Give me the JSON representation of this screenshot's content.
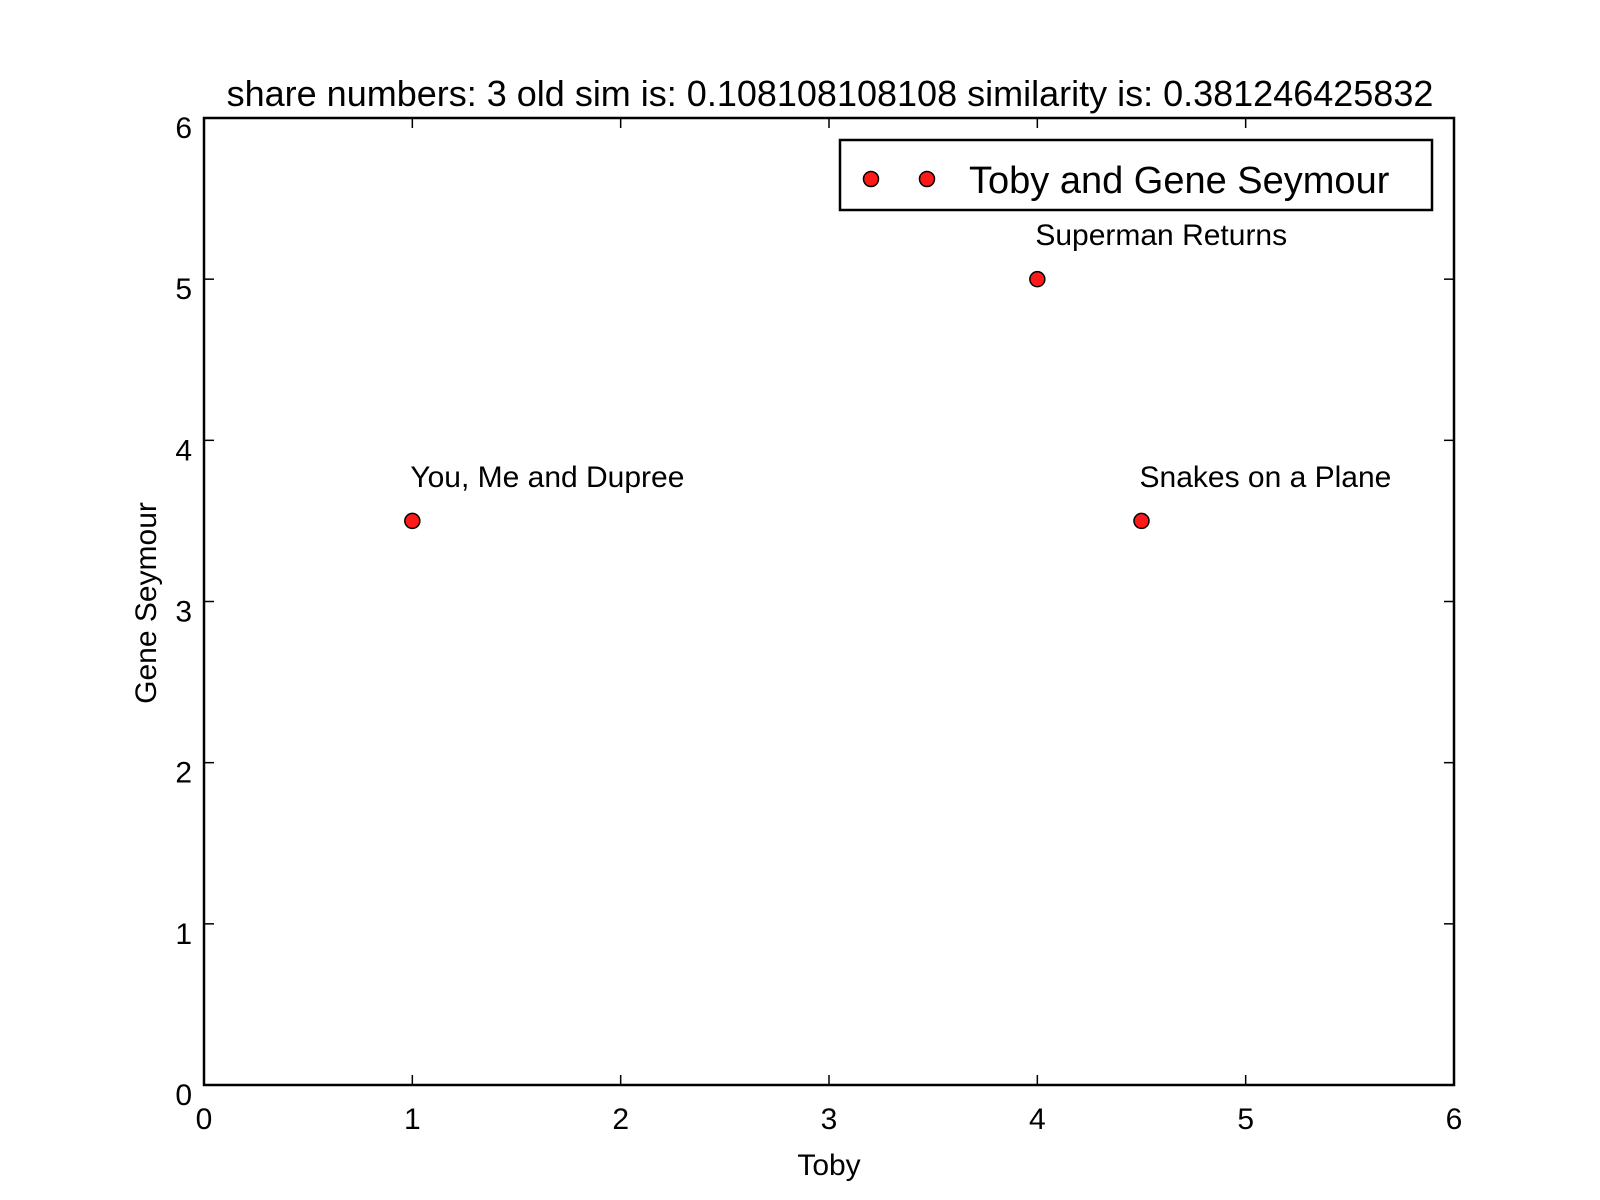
{
  "chart_data": {
    "type": "scatter",
    "title": "share numbers: 3 old sim is: 0.108108108108 similarity is: 0.381246425832",
    "xlabel": "Toby",
    "ylabel": "Gene Seymour",
    "xlim": [
      0,
      6
    ],
    "ylim": [
      0,
      6
    ],
    "xticks": [
      "0",
      "1",
      "2",
      "3",
      "4",
      "5",
      "6"
    ],
    "yticks": [
      "0",
      "1",
      "2",
      "3",
      "4",
      "5",
      "6"
    ],
    "grid": false,
    "legend_position": "top-right",
    "series": [
      {
        "name": "Toby and Gene Seymour",
        "color": "#ff1a1a",
        "points": [
          {
            "x": 1.0,
            "y": 3.5,
            "label": "You, Me and Dupree"
          },
          {
            "x": 4.0,
            "y": 5.0,
            "label": "Superman Returns"
          },
          {
            "x": 4.5,
            "y": 3.5,
            "label": "Snakes on a Plane"
          }
        ]
      }
    ]
  }
}
